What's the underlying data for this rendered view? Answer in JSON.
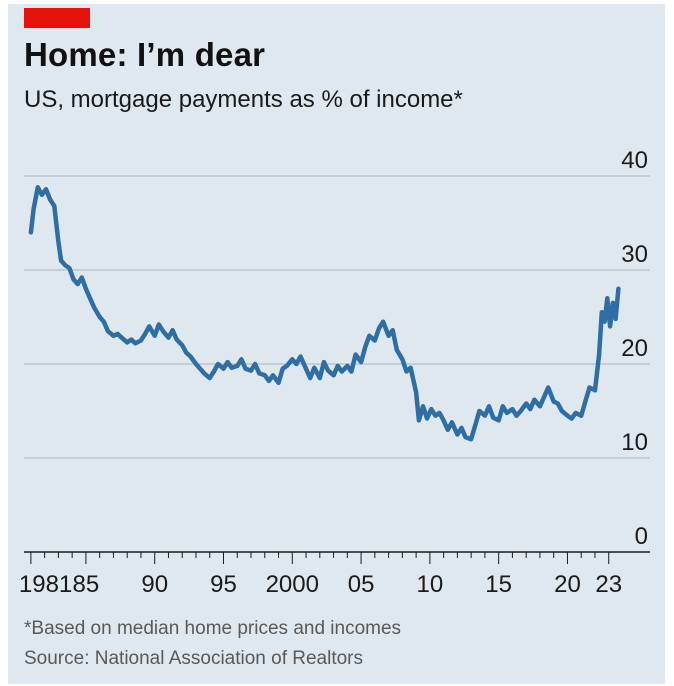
{
  "accent_color": "#e3120b",
  "line_color": "#2f6ea4",
  "chart_data": {
    "type": "line",
    "title": "Home: I’m dear",
    "subtitle": "US, mortgage payments as % of income*",
    "xlabel": "",
    "ylabel": "",
    "y_ticks": [
      0,
      10,
      20,
      30,
      40
    ],
    "ylim": [
      0,
      42
    ],
    "xlim": [
      1980.5,
      2026
    ],
    "x_tick_labels": [
      {
        "x": 1981,
        "label": "1981"
      },
      {
        "x": 1985,
        "label": "85"
      },
      {
        "x": 1990,
        "label": "90"
      },
      {
        "x": 1995,
        "label": "95"
      },
      {
        "x": 2000,
        "label": "2000"
      },
      {
        "x": 2005,
        "label": "05"
      },
      {
        "x": 2010,
        "label": "10"
      },
      {
        "x": 2015,
        "label": "15"
      },
      {
        "x": 2020,
        "label": "20"
      },
      {
        "x": 2023,
        "label": "23"
      }
    ],
    "grid": true,
    "series": [
      {
        "values": [
          [
            1981.0,
            34.0
          ],
          [
            1981.2,
            36.5
          ],
          [
            1981.5,
            38.8
          ],
          [
            1981.8,
            38.0
          ],
          [
            1982.1,
            38.6
          ],
          [
            1982.4,
            37.5
          ],
          [
            1982.7,
            36.8
          ],
          [
            1983.0,
            33.0
          ],
          [
            1983.2,
            31.0
          ],
          [
            1983.5,
            30.5
          ],
          [
            1983.8,
            30.2
          ],
          [
            1984.1,
            29.0
          ],
          [
            1984.4,
            28.5
          ],
          [
            1984.7,
            29.2
          ],
          [
            1985.0,
            28.0
          ],
          [
            1985.3,
            27.0
          ],
          [
            1985.6,
            26.0
          ],
          [
            1986.0,
            25.0
          ],
          [
            1986.3,
            24.5
          ],
          [
            1986.6,
            23.5
          ],
          [
            1987.0,
            23.0
          ],
          [
            1987.3,
            23.2
          ],
          [
            1987.6,
            22.8
          ],
          [
            1988.0,
            22.3
          ],
          [
            1988.3,
            22.6
          ],
          [
            1988.6,
            22.2
          ],
          [
            1989.0,
            22.5
          ],
          [
            1989.3,
            23.2
          ],
          [
            1989.6,
            24.0
          ],
          [
            1990.0,
            23.0
          ],
          [
            1990.3,
            24.2
          ],
          [
            1990.6,
            23.5
          ],
          [
            1991.0,
            22.8
          ],
          [
            1991.3,
            23.6
          ],
          [
            1991.6,
            22.6
          ],
          [
            1992.0,
            22.0
          ],
          [
            1992.3,
            21.2
          ],
          [
            1992.6,
            20.8
          ],
          [
            1993.0,
            20.0
          ],
          [
            1993.3,
            19.5
          ],
          [
            1993.6,
            19.0
          ],
          [
            1994.0,
            18.5
          ],
          [
            1994.3,
            19.2
          ],
          [
            1994.6,
            20.0
          ],
          [
            1995.0,
            19.5
          ],
          [
            1995.3,
            20.2
          ],
          [
            1995.6,
            19.6
          ],
          [
            1996.0,
            19.8
          ],
          [
            1996.3,
            20.5
          ],
          [
            1996.6,
            19.5
          ],
          [
            1997.0,
            19.3
          ],
          [
            1997.3,
            20.0
          ],
          [
            1997.6,
            19.0
          ],
          [
            1998.0,
            18.8
          ],
          [
            1998.3,
            18.2
          ],
          [
            1998.6,
            18.8
          ],
          [
            1999.0,
            18.0
          ],
          [
            1999.3,
            19.5
          ],
          [
            1999.6,
            19.8
          ],
          [
            2000.0,
            20.5
          ],
          [
            2000.3,
            20.0
          ],
          [
            2000.6,
            20.8
          ],
          [
            2001.0,
            19.5
          ],
          [
            2001.3,
            18.5
          ],
          [
            2001.6,
            19.6
          ],
          [
            2002.0,
            18.5
          ],
          [
            2002.3,
            20.2
          ],
          [
            2002.6,
            19.3
          ],
          [
            2003.0,
            18.8
          ],
          [
            2003.3,
            19.8
          ],
          [
            2003.6,
            19.2
          ],
          [
            2004.0,
            19.8
          ],
          [
            2004.3,
            19.2
          ],
          [
            2004.6,
            21.0
          ],
          [
            2005.0,
            20.2
          ],
          [
            2005.3,
            21.8
          ],
          [
            2005.6,
            23.0
          ],
          [
            2006.0,
            22.5
          ],
          [
            2006.3,
            23.8
          ],
          [
            2006.6,
            24.5
          ],
          [
            2007.0,
            23.0
          ],
          [
            2007.3,
            23.6
          ],
          [
            2007.6,
            21.5
          ],
          [
            2008.0,
            20.5
          ],
          [
            2008.3,
            19.2
          ],
          [
            2008.6,
            19.6
          ],
          [
            2009.0,
            17.0
          ],
          [
            2009.2,
            14.0
          ],
          [
            2009.5,
            15.5
          ],
          [
            2009.8,
            14.2
          ],
          [
            2010.1,
            15.2
          ],
          [
            2010.4,
            14.5
          ],
          [
            2010.7,
            14.8
          ],
          [
            2011.0,
            14.0
          ],
          [
            2011.3,
            13.0
          ],
          [
            2011.6,
            13.8
          ],
          [
            2012.0,
            12.5
          ],
          [
            2012.3,
            13.2
          ],
          [
            2012.6,
            12.2
          ],
          [
            2013.0,
            12.0
          ],
          [
            2013.3,
            13.5
          ],
          [
            2013.6,
            15.0
          ],
          [
            2014.0,
            14.5
          ],
          [
            2014.3,
            15.5
          ],
          [
            2014.6,
            14.3
          ],
          [
            2015.0,
            14.0
          ],
          [
            2015.3,
            15.5
          ],
          [
            2015.6,
            14.8
          ],
          [
            2016.0,
            15.2
          ],
          [
            2016.3,
            14.5
          ],
          [
            2016.6,
            15.0
          ],
          [
            2017.0,
            15.8
          ],
          [
            2017.3,
            15.2
          ],
          [
            2017.6,
            16.2
          ],
          [
            2018.0,
            15.5
          ],
          [
            2018.3,
            16.5
          ],
          [
            2018.6,
            17.5
          ],
          [
            2019.0,
            16.0
          ],
          [
            2019.3,
            15.8
          ],
          [
            2019.6,
            15.0
          ],
          [
            2020.0,
            14.5
          ],
          [
            2020.3,
            14.2
          ],
          [
            2020.6,
            14.8
          ],
          [
            2021.0,
            14.5
          ],
          [
            2021.3,
            16.0
          ],
          [
            2021.6,
            17.5
          ],
          [
            2022.0,
            17.2
          ],
          [
            2022.3,
            21.0
          ],
          [
            2022.5,
            25.5
          ],
          [
            2022.7,
            24.5
          ],
          [
            2022.9,
            27.0
          ],
          [
            2023.1,
            24.0
          ],
          [
            2023.3,
            26.5
          ],
          [
            2023.5,
            24.8
          ],
          [
            2023.7,
            28.0
          ]
        ]
      }
    ]
  },
  "footnote": "*Based on median home prices and incomes",
  "source": "Source: National Association of Realtors"
}
